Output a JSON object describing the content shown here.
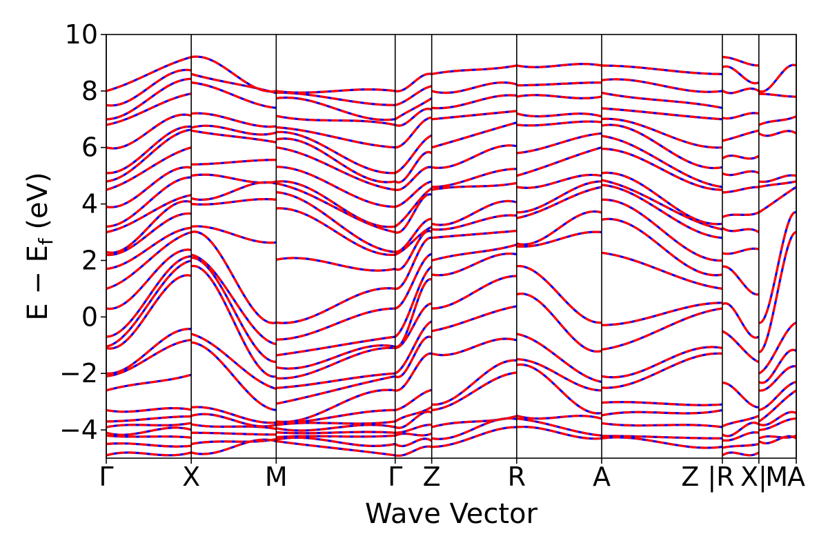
{
  "chart_data": {
    "type": "line",
    "title": "",
    "xlabel": "Wave Vector",
    "ylabel_parts": {
      "main": "E − E",
      "sub": "f",
      "unit": " (eV)"
    },
    "ylim": [
      -5,
      10
    ],
    "yticks": [
      -4,
      -2,
      0,
      2,
      4,
      6,
      8,
      10
    ],
    "ytick_labels": [
      "−4",
      "−2",
      "0",
      "2",
      "4",
      "6",
      "8",
      "10"
    ],
    "kpath_positions": [
      0,
      1,
      2,
      3.4,
      3.83,
      4.83,
      5.83,
      7.25,
      7.68,
      8.12
    ],
    "kpath_labels": [
      "Γ",
      "X",
      "M",
      "Γ",
      "Z",
      "R",
      "A",
      "Z |R",
      "X|",
      "M",
      "A"
    ],
    "kpath_label_positions": [
      0,
      1,
      2,
      3.4,
      3.83,
      4.83,
      5.83,
      7.08,
      7.62,
      7.89,
      8.12
    ],
    "segment_breaks": [
      7.25,
      7.68
    ],
    "series": [
      {
        "style": "solid",
        "color": "#0000ff"
      },
      {
        "style": "dashed",
        "color": "#ff0000"
      }
    ],
    "bands_at_k": {
      "Γ": [
        -4.9,
        -4.5,
        -4.2,
        -4.1,
        -3.9,
        -3.7,
        -3.3,
        -2.6,
        -2.1,
        -2.0,
        -1.1,
        -1.05,
        -0.7,
        0.3,
        1.0,
        1.7,
        2.2,
        2.3,
        3.0,
        3.2,
        3.9,
        4.5,
        4.8,
        5.1,
        6.0,
        6.8,
        7.0,
        7.5,
        8.0
      ],
      "X": [
        -4.8,
        -4.5,
        -4.1,
        -3.8,
        -3.5,
        -3.2,
        -0.9,
        -0.6,
        1.8,
        2.1,
        2.2,
        3.0,
        3.2,
        4.0,
        4.2,
        5.0,
        5.4,
        6.6,
        6.7,
        7.2,
        8.3,
        8.6,
        9.2
      ],
      "M": [
        -4.4,
        -4.3,
        -4.0,
        -3.8,
        -3.7,
        -2.6,
        -2.0,
        -1.25,
        -0.2,
        3.7,
        4.7,
        4.8,
        6.0,
        6.5,
        6.8,
        7.9,
        8.0
      ],
      "Γ2": [
        -4.9,
        -4.5,
        -4.2,
        -4.1,
        -3.9,
        -3.7,
        -3.3,
        -2.6,
        -2.1,
        -2.0,
        -1.1,
        -1.05,
        -0.7,
        0.3,
        1.0,
        1.7,
        2.2,
        2.3,
        3.0,
        3.2,
        3.9,
        4.5,
        4.8,
        5.1,
        6.0,
        6.8,
        7.0,
        7.5,
        8.0
      ],
      "Z": [
        -4.6,
        -4.3,
        -3.9,
        -3.3,
        -3.1,
        -1.3,
        -0.5,
        0.3,
        1.5,
        2.0,
        2.8,
        3.1,
        3.3,
        4.5,
        4.6,
        5.3,
        6.0,
        7.0,
        7.4,
        8.0,
        8.6
      ],
      "R": [
        -3.9,
        -3.6,
        -3.5,
        -1.7,
        -1.5,
        -0.6,
        0.8,
        1.8,
        2.5,
        2.6,
        3.5,
        3.7,
        4.6,
        5.0,
        5.8,
        6.8,
        7.2,
        7.8,
        8.2,
        8.9
      ],
      "A": [
        -4.3,
        -4.2,
        -3.6,
        -3.4,
        -2.6,
        -2.3,
        -1.2,
        -0.2,
        3.0,
        3.7,
        4.6,
        4.8,
        5.0,
        6.0,
        6.5,
        6.9,
        7.1,
        7.8,
        8.3,
        8.9
      ],
      "Z3": [
        -4.6,
        -4.3,
        -3.9,
        -3.3,
        -3.1,
        -1.3,
        -1.1,
        0.3,
        0.5,
        1.0,
        1.5,
        2.0,
        2.8,
        3.1,
        3.3,
        4.5,
        4.6,
        5.3,
        6.0,
        7.0,
        7.4,
        8.0,
        8.6
      ],
      "R2": [
        -4.9,
        -4.6,
        -4.3,
        -4.1,
        -3.7,
        -0.8,
        0.0,
        1.7,
        2.2,
        3.2,
        3.6,
        4.7,
        5.3,
        5.9,
        6.7,
        7.8,
        8.8,
        9.2
      ],
      "X2": [
        -4.8,
        -4.5,
        -4.1,
        -3.8,
        -3.5,
        -3.2,
        -1.6,
        -0.7,
        0.8,
        2.4,
        3.0,
        3.7,
        4.6,
        5.1,
        5.7,
        6.6,
        7.2,
        8.0,
        8.3,
        8.9
      ],
      "M2": [
        -4.4,
        -4.3,
        -4.0,
        -3.8,
        -3.7,
        -3.3,
        -2.6,
        -2.3,
        -2.0,
        -1.25,
        -0.2,
        3.7,
        4.6,
        4.8,
        6.5,
        6.8,
        7.9,
        8.0
      ],
      "A2": [
        -4.3,
        -4.2,
        -3.6,
        -3.4,
        -2.6,
        -2.3,
        -1.75,
        -1.2,
        -0.2,
        3.0,
        3.7,
        4.6,
        4.8,
        5.0,
        6.5,
        7.1,
        7.8,
        8.9
      ]
    }
  }
}
